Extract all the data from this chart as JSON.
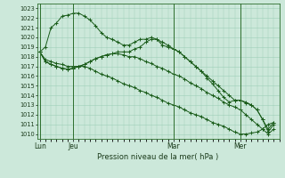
{
  "xlabel": "Pression niveau de la mer( hPa )",
  "ylim": [
    1009.5,
    1023.5
  ],
  "yticks": [
    1010,
    1011,
    1012,
    1013,
    1014,
    1015,
    1016,
    1017,
    1018,
    1019,
    1020,
    1021,
    1022,
    1023
  ],
  "bg_color": "#cce8da",
  "grid_color": "#9ecfb8",
  "line_color": "#1a5c1a",
  "xtick_labels": [
    "Lun",
    "Jeu",
    "Mar",
    "Mer"
  ],
  "xtick_positions": [
    0,
    6,
    24,
    36
  ],
  "xlim": [
    -0.5,
    43
  ],
  "series1_x": [
    0,
    1,
    2,
    3,
    4,
    5,
    6,
    7,
    8,
    9,
    10,
    11,
    12,
    13,
    14,
    15,
    16,
    17,
    18,
    19,
    20,
    21,
    22,
    23,
    24,
    25,
    26,
    27,
    28,
    29,
    30,
    31,
    32,
    33,
    34,
    35,
    36,
    37,
    38,
    39,
    40,
    41,
    42
  ],
  "series1": [
    1018.5,
    1017.7,
    1017.5,
    1017.3,
    1017.2,
    1017.0,
    1017.0,
    1017.0,
    1017.0,
    1016.8,
    1016.5,
    1016.2,
    1016.0,
    1015.8,
    1015.5,
    1015.2,
    1015.0,
    1014.8,
    1014.5,
    1014.3,
    1014.0,
    1013.8,
    1013.5,
    1013.2,
    1013.0,
    1012.8,
    1012.5,
    1012.2,
    1012.0,
    1011.8,
    1011.5,
    1011.2,
    1011.0,
    1010.8,
    1010.5,
    1010.2,
    1010.0,
    1010.0,
    1010.1,
    1010.2,
    1010.5,
    1011.0,
    1011.2
  ],
  "series2_x": [
    0,
    1,
    2,
    3,
    4,
    5,
    6,
    7,
    8,
    9,
    10,
    11,
    12,
    13,
    14,
    15,
    16,
    17,
    18,
    19,
    20,
    21,
    22,
    23,
    24,
    25,
    26,
    27,
    28,
    29,
    30,
    31,
    32,
    33,
    34,
    35,
    36,
    37,
    38,
    39,
    40,
    41,
    42
  ],
  "series2": [
    1018.5,
    1017.5,
    1017.2,
    1017.0,
    1016.8,
    1016.7,
    1016.8,
    1017.0,
    1017.2,
    1017.5,
    1017.8,
    1018.0,
    1018.2,
    1018.3,
    1018.5,
    1018.5,
    1018.5,
    1018.8,
    1019.0,
    1019.5,
    1019.8,
    1019.8,
    1019.5,
    1019.2,
    1018.8,
    1018.5,
    1018.0,
    1017.5,
    1017.0,
    1016.5,
    1016.0,
    1015.5,
    1015.0,
    1014.5,
    1014.0,
    1013.5,
    1013.5,
    1013.3,
    1013.0,
    1012.5,
    1011.5,
    1010.5,
    1011.2
  ],
  "series3_x": [
    0,
    1,
    2,
    3,
    4,
    5,
    6,
    7,
    8,
    9,
    10,
    11,
    12,
    13,
    14,
    15,
    16,
    17,
    18,
    19,
    20,
    21,
    22,
    23,
    24,
    25,
    26,
    27,
    28,
    29,
    30,
    31,
    32,
    33,
    34,
    35,
    36,
    37,
    38,
    39,
    40,
    41,
    42
  ],
  "series3": [
    1018.5,
    1019.0,
    1021.0,
    1021.5,
    1022.2,
    1022.3,
    1022.5,
    1022.5,
    1022.2,
    1021.8,
    1021.2,
    1020.5,
    1020.0,
    1019.8,
    1019.5,
    1019.2,
    1019.2,
    1019.5,
    1019.8,
    1019.8,
    1020.0,
    1019.8,
    1019.2,
    1019.0,
    1018.8,
    1018.5,
    1018.0,
    1017.5,
    1017.0,
    1016.5,
    1015.8,
    1015.2,
    1014.5,
    1013.8,
    1013.3,
    1013.5,
    1013.5,
    1013.2,
    1013.0,
    1012.5,
    1011.5,
    1010.2,
    1011.0
  ],
  "series4_x": [
    0,
    1,
    2,
    3,
    4,
    5,
    6,
    7,
    8,
    9,
    10,
    11,
    12,
    13,
    14,
    15,
    16,
    17,
    18,
    19,
    20,
    21,
    22,
    23,
    24,
    25,
    26,
    27,
    28,
    29,
    30,
    31,
    32,
    33,
    34,
    35,
    36,
    37,
    38,
    39,
    40,
    41,
    42
  ],
  "series4": [
    1018.5,
    1017.5,
    1017.2,
    1017.0,
    1016.8,
    1016.7,
    1016.8,
    1017.0,
    1017.2,
    1017.5,
    1017.8,
    1018.0,
    1018.2,
    1018.3,
    1018.3,
    1018.2,
    1018.0,
    1018.0,
    1017.8,
    1017.5,
    1017.3,
    1017.0,
    1016.8,
    1016.5,
    1016.2,
    1016.0,
    1015.7,
    1015.3,
    1015.0,
    1014.7,
    1014.3,
    1014.0,
    1013.7,
    1013.3,
    1013.0,
    1012.8,
    1012.5,
    1012.0,
    1011.5,
    1011.0,
    1010.5,
    1010.0,
    1010.5
  ]
}
